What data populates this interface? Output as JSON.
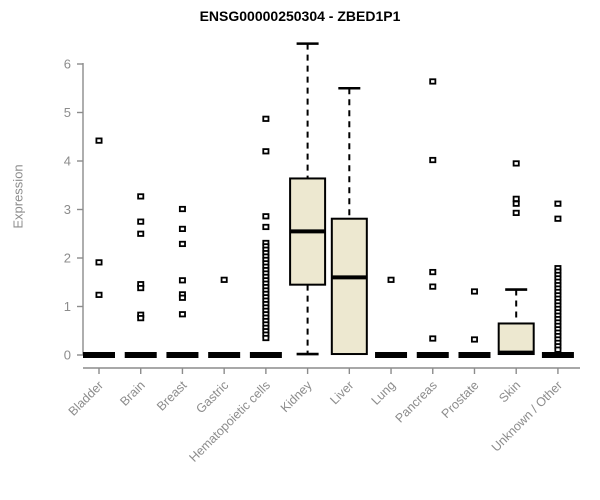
{
  "chart_data": {
    "type": "boxplot",
    "title": "ENSG00000250304 - ZBED1P1",
    "ylabel": "Expression",
    "xlabel": "",
    "ylim": [
      0,
      6.6
    ],
    "yticks": [
      0,
      1,
      2,
      3,
      4,
      5,
      6
    ],
    "grid": false,
    "legend": "none",
    "colors": {
      "box_fill": "#EDE8D0",
      "box_stroke": "#000000",
      "whisker": "#000000",
      "axis": "#8C8C8C",
      "tick_label": "#8C8C8C",
      "title": "#000000",
      "background": "#FFFFFF"
    },
    "categories": [
      "Bladder",
      "Brain",
      "Breast",
      "Gastric",
      "Hematopoietic cells",
      "Kidney",
      "Liver",
      "Lung",
      "Pancreas",
      "Prostate",
      "Skin",
      "Unknown / Other"
    ],
    "series": [
      {
        "name": "Bladder",
        "q1": 0,
        "median": 0,
        "q3": 0,
        "whisker_low": 0,
        "whisker_high": 0,
        "outliers": [
          4.42,
          1.91,
          1.24
        ]
      },
      {
        "name": "Brain",
        "q1": 0,
        "median": 0,
        "q3": 0,
        "whisker_low": 0,
        "whisker_high": 0,
        "outliers": [
          3.27,
          2.75,
          2.5,
          1.46,
          1.38,
          0.83,
          0.76
        ]
      },
      {
        "name": "Breast",
        "q1": 0,
        "median": 0,
        "q3": 0,
        "whisker_low": 0,
        "whisker_high": 0,
        "outliers": [
          3.01,
          2.6,
          2.29,
          1.54,
          1.25,
          1.18,
          0.84
        ]
      },
      {
        "name": "Gastric",
        "q1": 0,
        "median": 0,
        "q3": 0,
        "whisker_low": 0,
        "whisker_high": 0,
        "outliers": [
          1.55
        ]
      },
      {
        "name": "Hematopoietic cells",
        "q1": 0,
        "median": 0,
        "q3": 0,
        "whisker_low": 0,
        "whisker_high": 0,
        "outliers": [
          4.87,
          4.2,
          2.86,
          2.64,
          2.31,
          2.24,
          2.17,
          2.1,
          2.03,
          1.96,
          1.89,
          1.82,
          1.75,
          1.68,
          1.61,
          1.54,
          1.47,
          1.4,
          1.33,
          1.26,
          1.19,
          1.12,
          1.05,
          0.98,
          0.91,
          0.84,
          0.77,
          0.7,
          0.63,
          0.56,
          0.49,
          0.42,
          0.35
        ]
      },
      {
        "name": "Kidney",
        "q1": 1.45,
        "median": 2.55,
        "q3": 3.64,
        "whisker_low": 0.02,
        "whisker_high": 6.42,
        "outliers": []
      },
      {
        "name": "Liver",
        "q1": 0.02,
        "median": 1.6,
        "q3": 2.81,
        "whisker_low": 0.02,
        "whisker_high": 5.5,
        "outliers": []
      },
      {
        "name": "Lung",
        "q1": 0,
        "median": 0,
        "q3": 0,
        "whisker_low": 0,
        "whisker_high": 0,
        "outliers": [
          1.55
        ]
      },
      {
        "name": "Pancreas",
        "q1": 0,
        "median": 0,
        "q3": 0,
        "whisker_low": 0,
        "whisker_high": 0,
        "outliers": [
          5.64,
          4.02,
          1.71,
          1.41,
          0.34
        ]
      },
      {
        "name": "Prostate",
        "q1": 0,
        "median": 0,
        "q3": 0,
        "whisker_low": 0,
        "whisker_high": 0,
        "outliers": [
          1.31,
          0.32
        ]
      },
      {
        "name": "Skin",
        "q1": 0.02,
        "median": 0.05,
        "q3": 0.65,
        "whisker_low": 0.02,
        "whisker_high": 1.35,
        "outliers": [
          3.95,
          3.22,
          3.12,
          2.93
        ]
      },
      {
        "name": "Unknown / Other",
        "q1": 0,
        "median": 0,
        "q3": 0,
        "whisker_low": 0,
        "whisker_high": 0,
        "outliers": [
          3.12,
          2.81,
          1.79,
          1.72,
          1.65,
          1.58,
          1.51,
          1.44,
          1.37,
          1.3,
          1.23,
          1.16,
          1.09,
          1.02,
          0.95,
          0.88,
          0.81,
          0.74,
          0.67,
          0.6,
          0.53,
          0.46,
          0.39,
          0.32,
          0.25,
          0.18,
          0.11
        ]
      }
    ]
  }
}
